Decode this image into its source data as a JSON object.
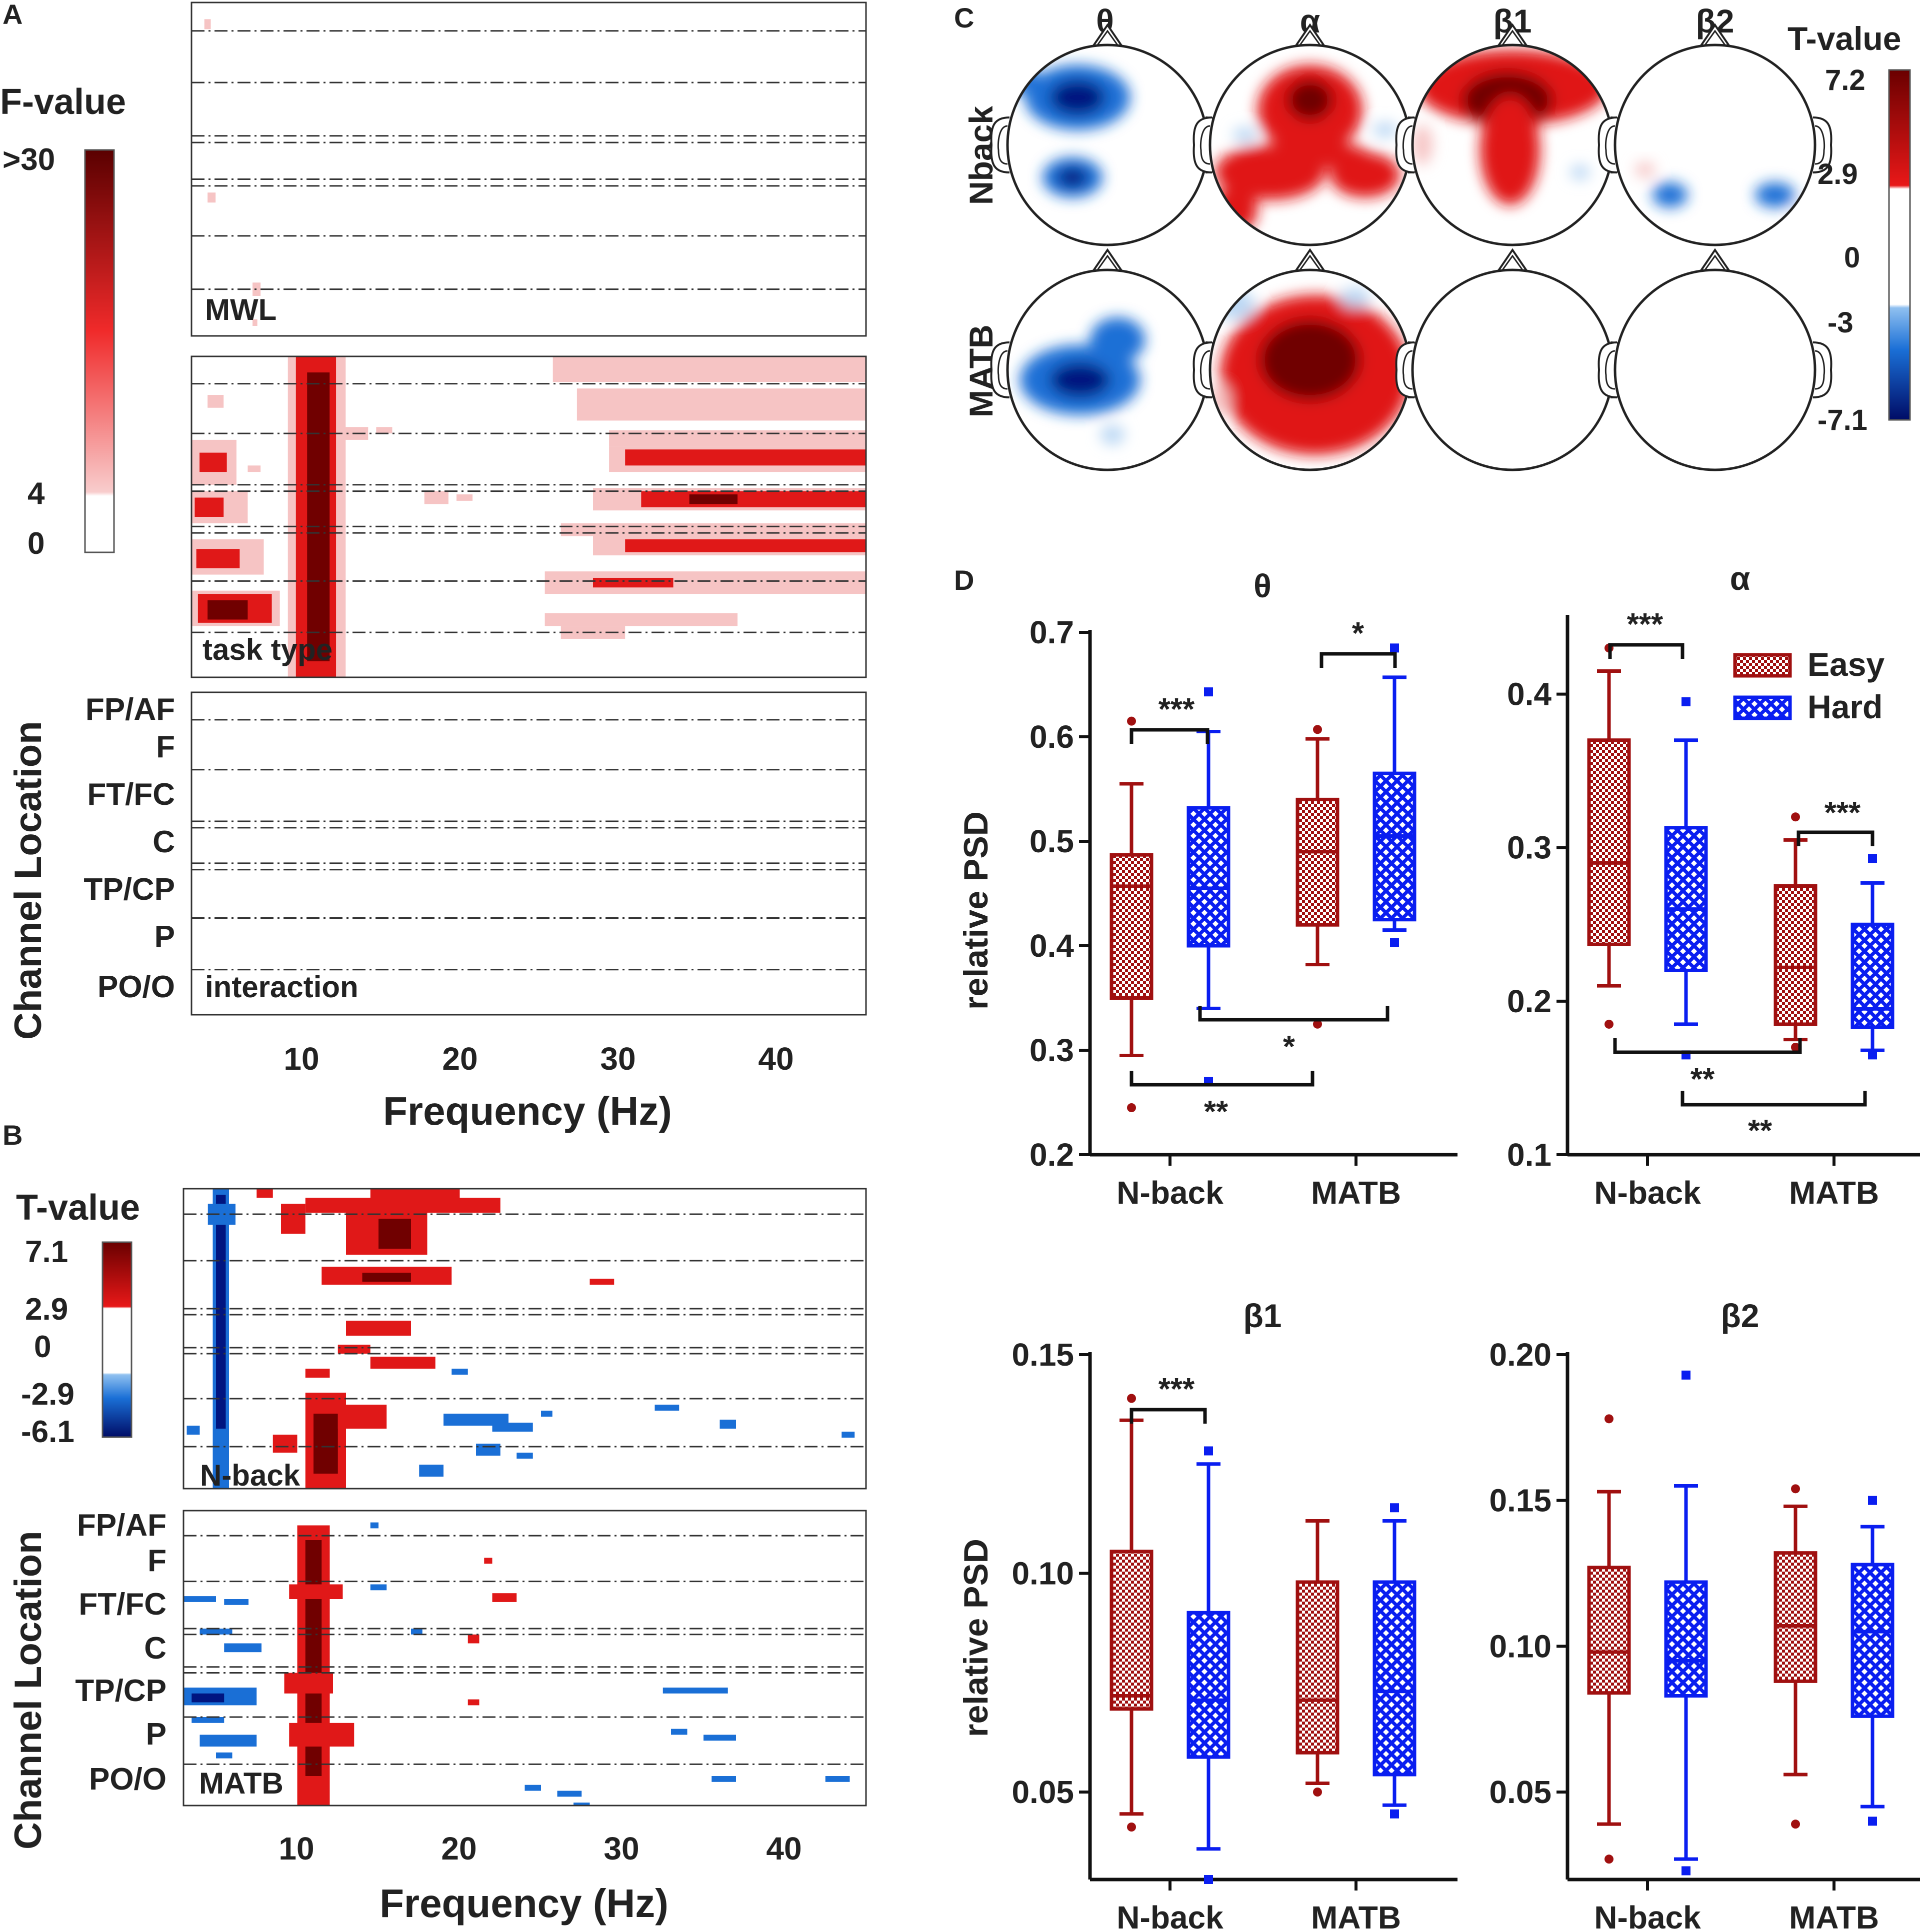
{
  "panel_letters": {
    "a": "A",
    "b": "B",
    "c": "C",
    "d": "D"
  },
  "colors": {
    "easy": "#a01010",
    "hard": "#0a1ef0",
    "red_light": "#f6c4c4",
    "red_mid": "#e01818",
    "red_dark": "#700000",
    "blue_light": "#bcd8f4",
    "blue_mid": "#1a6fd6",
    "blue_dark": "#001580"
  },
  "panel_a": {
    "colorbar_title": "F-value",
    "colorbar_ticks": [
      ">30",
      "4",
      "0"
    ],
    "subplot_labels": [
      "MWL",
      "task type",
      "interaction"
    ],
    "ylabel": "Channel Location",
    "channel_groups": [
      "FP/AF",
      "F",
      "FT/FC",
      "C",
      "TP/CP",
      "P",
      "PO/O"
    ],
    "xlabel": "Frequency (Hz)",
    "xticks": [
      "10",
      "20",
      "30",
      "40"
    ]
  },
  "panel_b": {
    "colorbar_title": "T-value",
    "colorbar_ticks": [
      "7.1",
      "2.9",
      "0",
      "-2.9",
      "-6.1"
    ],
    "subplot_labels": [
      "N-back",
      "MATB"
    ],
    "ylabel": "Channel Location",
    "channel_groups": [
      "FP/AF",
      "F",
      "FT/FC",
      "C",
      "TP/CP",
      "P",
      "PO/O"
    ],
    "xlabel": "Frequency (Hz)",
    "xticks": [
      "10",
      "20",
      "30",
      "40"
    ]
  },
  "panel_c": {
    "bands": [
      "θ",
      "α",
      "β1",
      "β2"
    ],
    "rows": [
      "Nback",
      "MATB"
    ],
    "colorbar_title": "T-value",
    "colorbar_ticks": [
      "7.2",
      "2.9",
      "0",
      "-3",
      "-7.1"
    ]
  },
  "panel_d": {
    "ylabel": "relative PSD",
    "legend": [
      "Easy",
      "Hard"
    ]
  },
  "chart_data": [
    {
      "type": "box",
      "title": "θ",
      "categories": [
        "N-back",
        "MATB"
      ],
      "ylabel": "relative PSD",
      "ylim": [
        0.2,
        0.7
      ],
      "yticks": [
        "0.2",
        "0.3",
        "0.4",
        "0.5",
        "0.6",
        "0.7"
      ],
      "series": [
        {
          "name": "Easy",
          "boxes": [
            {
              "min": 0.295,
              "q1": 0.35,
              "median": 0.457,
              "q3": 0.487,
              "max": 0.555,
              "outliers": [
                0.245,
                0.615
              ]
            },
            {
              "min": 0.382,
              "q1": 0.42,
              "median": 0.49,
              "q3": 0.54,
              "max": 0.598,
              "outliers": [
                0.325,
                0.607
              ]
            }
          ]
        },
        {
          "name": "Hard",
          "boxes": [
            {
              "min": 0.34,
              "q1": 0.4,
              "median": 0.455,
              "q3": 0.532,
              "max": 0.605,
              "outliers": [
                0.27,
                0.643
              ]
            },
            {
              "min": 0.415,
              "q1": 0.425,
              "median": 0.505,
              "q3": 0.565,
              "max": 0.657,
              "outliers": [
                0.403,
                0.685
              ]
            }
          ]
        }
      ],
      "significance": [
        {
          "label": "***",
          "from": "N-back Easy",
          "to": "N-back Hard"
        },
        {
          "label": "*",
          "from": "MATB Easy",
          "to": "MATB Hard"
        },
        {
          "label": "*",
          "from": "N-back Hard",
          "to": "MATB Hard"
        },
        {
          "label": "**",
          "from": "N-back Easy",
          "to": "MATB Easy"
        }
      ]
    },
    {
      "type": "box",
      "title": "α",
      "categories": [
        "N-back",
        "MATB"
      ],
      "ylabel": "",
      "ylim": [
        0.1,
        0.45
      ],
      "yticks": [
        "0.1",
        "0.2",
        "0.3",
        "0.4"
      ],
      "series": [
        {
          "name": "Easy",
          "boxes": [
            {
              "min": 0.21,
              "q1": 0.237,
              "median": 0.29,
              "q3": 0.37,
              "max": 0.415,
              "outliers": [
                0.185,
                0.43
              ]
            },
            {
              "min": 0.175,
              "q1": 0.185,
              "median": 0.222,
              "q3": 0.275,
              "max": 0.305,
              "outliers": [
                0.17,
                0.32
              ]
            }
          ]
        },
        {
          "name": "Hard",
          "boxes": [
            {
              "min": 0.185,
              "q1": 0.22,
              "median": 0.26,
              "q3": 0.313,
              "max": 0.37,
              "outliers": [
                0.165,
                0.395
              ]
            },
            {
              "min": 0.168,
              "q1": 0.183,
              "median": 0.195,
              "q3": 0.25,
              "max": 0.277,
              "outliers": [
                0.165,
                0.293
              ]
            }
          ]
        }
      ],
      "significance": [
        {
          "label": "***",
          "from": "N-back Easy",
          "to": "N-back Hard"
        },
        {
          "label": "***",
          "from": "MATB Easy",
          "to": "MATB Hard"
        },
        {
          "label": "**",
          "from": "N-back Easy",
          "to": "MATB Easy"
        },
        {
          "label": "**",
          "from": "N-back Hard",
          "to": "MATB Hard"
        }
      ]
    },
    {
      "type": "box",
      "title": "β1",
      "categories": [
        "N-back",
        "MATB"
      ],
      "ylabel": "relative PSD",
      "ylim": [
        0.03,
        0.15
      ],
      "yticks": [
        "0.05",
        "0.10",
        "0.15"
      ],
      "series": [
        {
          "name": "Easy",
          "boxes": [
            {
              "min": 0.045,
              "q1": 0.069,
              "median": 0.072,
              "q3": 0.105,
              "max": 0.135,
              "outliers": [
                0.042,
                0.14
              ]
            },
            {
              "min": 0.052,
              "q1": 0.059,
              "median": 0.071,
              "q3": 0.098,
              "max": 0.112,
              "outliers": [
                0.05
              ]
            }
          ]
        },
        {
          "name": "Hard",
          "boxes": [
            {
              "min": 0.037,
              "q1": 0.058,
              "median": 0.071,
              "q3": 0.091,
              "max": 0.125,
              "outliers": [
                0.03,
                0.128
              ]
            },
            {
              "min": 0.047,
              "q1": 0.054,
              "median": 0.073,
              "q3": 0.098,
              "max": 0.112,
              "outliers": [
                0.045,
                0.115
              ]
            }
          ]
        }
      ],
      "significance": [
        {
          "label": "***",
          "from": "N-back Easy",
          "to": "N-back Hard"
        }
      ]
    },
    {
      "type": "box",
      "title": "β2",
      "categories": [
        "N-back",
        "MATB"
      ],
      "ylabel": "",
      "ylim": [
        0.02,
        0.2
      ],
      "yticks": [
        "0.05",
        "0.10",
        "0.15",
        "0.20"
      ],
      "series": [
        {
          "name": "Easy",
          "boxes": [
            {
              "min": 0.039,
              "q1": 0.084,
              "median": 0.098,
              "q3": 0.127,
              "max": 0.153,
              "outliers": [
                0.027,
                0.178
              ]
            },
            {
              "min": 0.056,
              "q1": 0.088,
              "median": 0.107,
              "q3": 0.132,
              "max": 0.148,
              "outliers": [
                0.039,
                0.154
              ]
            }
          ]
        },
        {
          "name": "Hard",
          "boxes": [
            {
              "min": 0.027,
              "q1": 0.083,
              "median": 0.095,
              "q3": 0.122,
              "max": 0.155,
              "outliers": [
                0.023,
                0.193
              ]
            },
            {
              "min": 0.045,
              "q1": 0.076,
              "median": 0.105,
              "q3": 0.128,
              "max": 0.141,
              "outliers": [
                0.04,
                0.15
              ]
            }
          ]
        }
      ],
      "significance": []
    }
  ]
}
